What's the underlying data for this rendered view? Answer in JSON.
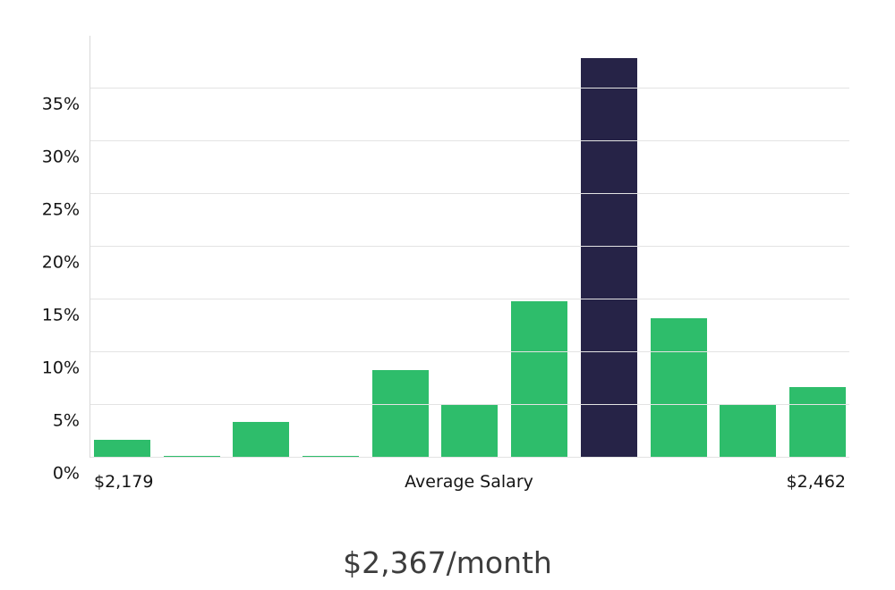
{
  "chart_data": {
    "type": "bar",
    "title": "$2,367/month",
    "values": [
      1.7,
      0.15,
      3.4,
      0.15,
      8.3,
      5.0,
      14.8,
      37.9,
      13.2,
      5.0,
      6.7
    ],
    "highlight_index": 7,
    "bar_color": "#2ebd6b",
    "highlight_color": "#262347",
    "ylim": [
      0,
      40
    ],
    "y_ticks": [
      {
        "value": 0,
        "label": "0%"
      },
      {
        "value": 5,
        "label": "5%"
      },
      {
        "value": 10,
        "label": "10%"
      },
      {
        "value": 15,
        "label": "15%"
      },
      {
        "value": 20,
        "label": "20%"
      },
      {
        "value": 25,
        "label": "25%"
      },
      {
        "value": 30,
        "label": "30%"
      },
      {
        "value": 35,
        "label": "35%"
      }
    ],
    "grid": true,
    "legend": "none",
    "x_axis_labels": {
      "left": "$2,179",
      "center": "Average Salary",
      "right": "$2,462"
    }
  }
}
